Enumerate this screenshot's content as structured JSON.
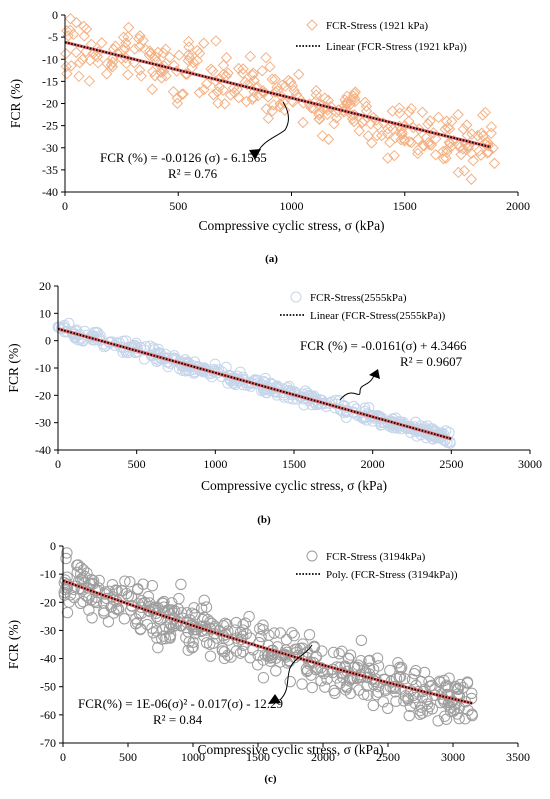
{
  "chart_data": [
    {
      "type": "scatter",
      "panel_label": "(a)",
      "xlabel": "Compressive cyclic stress, σ (kPa)",
      "ylabel": "FCR (%)",
      "xlim": [
        0,
        2000
      ],
      "ylim": [
        -40,
        0
      ],
      "xticks": [
        0,
        500,
        1000,
        1500,
        2000
      ],
      "yticks": [
        0,
        -5,
        -10,
        -15,
        -20,
        -25,
        -30,
        -35,
        -40
      ],
      "grid": false,
      "legend_position": "top-right",
      "series": [
        {
          "name": "FCR-Stress (1921 kPa)",
          "marker": "diamond",
          "color": "#f4b183",
          "points_summary": {
            "x_range": [
              0,
              1900
            ],
            "trend": "linear",
            "slope": -0.0126,
            "intercept": -6.1565,
            "spread_pct": 6.5
          }
        },
        {
          "name": "Linear (FCR-Stress (1921 kPa))",
          "style": "dotted",
          "color": "#000000",
          "underlay_color": "#e06666",
          "x": [
            0,
            1880
          ],
          "y": [
            -6.1565,
            -29.84
          ]
        }
      ],
      "annotation": {
        "text": "FCR (%) = -0.0126 (σ) - 6.1565",
        "r2": "R² = 0.76"
      }
    },
    {
      "type": "scatter",
      "panel_label": "(b)",
      "xlabel": "Compressive cyclic stress, σ (kPa)",
      "ylabel": "FCR (%)",
      "xlim": [
        0,
        3000
      ],
      "ylim": [
        -40,
        20
      ],
      "xticks": [
        0,
        500,
        1000,
        1500,
        2000,
        2500,
        3000
      ],
      "yticks": [
        20,
        10,
        0,
        -10,
        -20,
        -30,
        -40
      ],
      "grid": false,
      "legend_position": "top-right",
      "series": [
        {
          "name": "FCR-Stress(2555kPa)",
          "marker": "circle",
          "color": "#c5d5ea",
          "points_summary": {
            "x_range": [
              0,
              2500
            ],
            "trend": "linear",
            "slope": -0.0161,
            "intercept": 4.3466,
            "spread_pct": 2.5
          }
        },
        {
          "name": "Linear (FCR-Stress(2555kPa))",
          "style": "dotted",
          "color": "#000000",
          "underlay_color": "#e06666",
          "x": [
            0,
            2500
          ],
          "y": [
            4.3466,
            -35.9
          ]
        }
      ],
      "annotation": {
        "text": "FCR (%) = -0.0161(σ) + 4.3466",
        "r2": "R² = 0.9607"
      }
    },
    {
      "type": "scatter",
      "panel_label": "(c)",
      "xlabel": "Compressive cyclic stress, σ (kPa)",
      "ylabel": "FCR (%)",
      "xlim": [
        0,
        3500
      ],
      "ylim": [
        -70,
        0
      ],
      "xticks": [
        0,
        500,
        1000,
        1500,
        2000,
        2500,
        3000,
        3500
      ],
      "yticks": [
        0,
        -10,
        -20,
        -30,
        -40,
        -50,
        -60,
        -70
      ],
      "grid": false,
      "legend_position": "top-right",
      "series": [
        {
          "name": "FCR-Stress (3194kPa)",
          "marker": "circle",
          "color": "#9e9e9e",
          "points_summary": {
            "x_range": [
              0,
              3150
            ],
            "trend": "poly2",
            "a": 1e-06,
            "b": -0.017,
            "c": -12.29,
            "spread_pct": 9
          }
        },
        {
          "name": "Poly. (FCR-Stress (3194kPa))",
          "style": "dotted",
          "color": "#000000",
          "underlay_color": "#e06666",
          "x": [
            0,
            500,
            1000,
            1500,
            2000,
            2500,
            3150
          ],
          "y": [
            -12.29,
            -20.54,
            -28.29,
            -35.54,
            -42.29,
            -48.54,
            -55.92
          ]
        }
      ],
      "annotation": {
        "text": "FCR(%) = 1E-06(σ)² - 0.017(σ) - 12.29",
        "r2": "R² = 0.84"
      }
    }
  ]
}
